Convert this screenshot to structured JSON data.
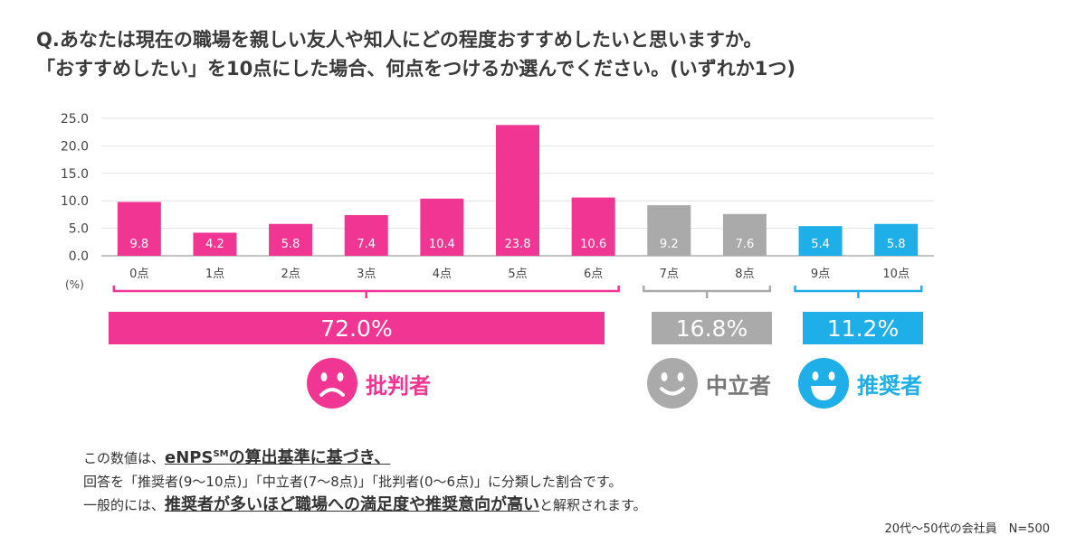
{
  "question": {
    "line1": "Q.あなたは現在の職場を親しい友人や知人にどの程度おすすめしたいと思いますか。",
    "line2": "「おすすめしたい」を10点にした場合、何点をつけるか選んでください。(いずれか1つ)"
  },
  "colors": {
    "critic": "#f03592",
    "neutral": "#aaaaaa",
    "promoter": "#1eaee8",
    "axis": "#888888",
    "grid": "#e3e3e3"
  },
  "chart_data": {
    "type": "bar",
    "categories": [
      "0点",
      "1点",
      "2点",
      "3点",
      "4点",
      "5点",
      "6点",
      "7点",
      "8点",
      "9点",
      "10点"
    ],
    "values": [
      9.8,
      4.2,
      5.8,
      7.4,
      10.4,
      23.8,
      10.6,
      9.2,
      7.6,
      5.4,
      5.8
    ],
    "value_labels": [
      "9.8",
      "4.2",
      "5.8",
      "7.4",
      "10.4",
      "23.8",
      "10.6",
      "9.2",
      "7.6",
      "5.4",
      "5.8"
    ],
    "groups": [
      "critic",
      "critic",
      "critic",
      "critic",
      "critic",
      "critic",
      "critic",
      "neutral",
      "neutral",
      "promoter",
      "promoter"
    ],
    "yticks": [
      "25.0",
      "20.0",
      "15.0",
      "10.0",
      "5.0",
      "0.0"
    ],
    "ylim": [
      0,
      25
    ],
    "ylabel": "(%)",
    "grid": true
  },
  "segments": {
    "critic": {
      "percent": "72.0%",
      "label": "批判者"
    },
    "neutral": {
      "percent": "16.8%",
      "label": "中立者"
    },
    "promoter": {
      "percent": "11.2%",
      "label": "推奨者"
    }
  },
  "note": {
    "l1_a": "この数値は、",
    "l1_b": "eNPS",
    "l1_sm": "SM",
    "l1_c": "の算出基準に基づき、",
    "l2": "回答を「推奨者(9〜10点)」「中立者(7〜8点)」「批判者(0〜6点)」に分類した割合です。",
    "l3_a": "一般的には、",
    "l3_b": "推奨者が多いほど職場への満足度や推奨意向が高い",
    "l3_c": "と解釈されます。"
  },
  "footer": "20代〜50代の会社員　N=500"
}
